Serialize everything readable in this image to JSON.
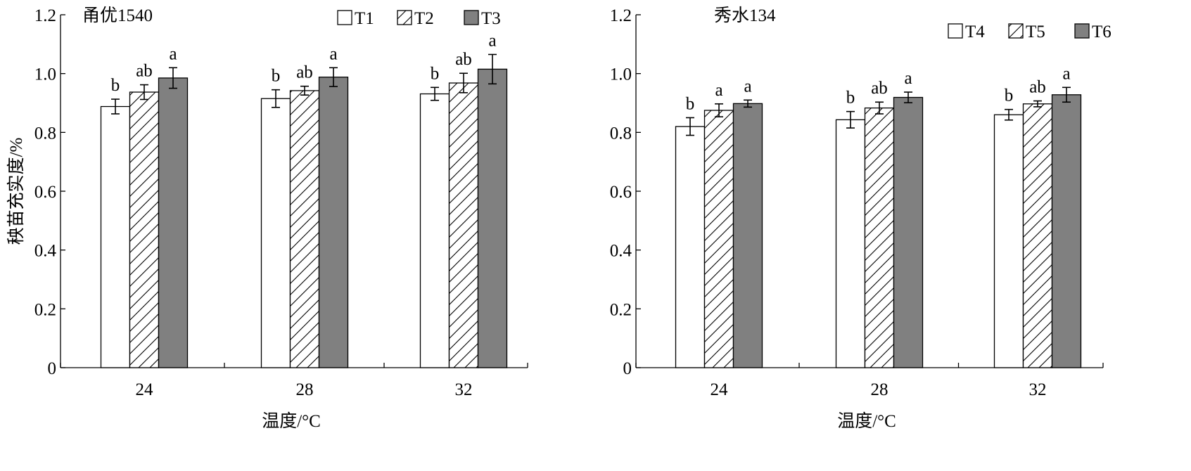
{
  "chart_data": [
    {
      "type": "bar",
      "title": "甬优1540",
      "xlabel": "温度/°C",
      "ylabel": "秧苗充实度/%",
      "categories": [
        "24",
        "28",
        "32"
      ],
      "ylim": [
        0,
        1.2
      ],
      "yticks": [
        "0",
        "0.2",
        "0.4",
        "0.6",
        "0.8",
        "1.0",
        "1.2"
      ],
      "legend_position": "top-right",
      "series": [
        {
          "name": "T1",
          "fill": "#ffffff",
          "pattern": "none",
          "values": [
            0.888,
            0.915,
            0.931
          ],
          "errors": [
            0.025,
            0.03,
            0.022
          ],
          "letters": [
            "b",
            "b",
            "b"
          ]
        },
        {
          "name": "T2",
          "fill": "#ffffff",
          "pattern": "hatch",
          "values": [
            0.937,
            0.942,
            0.968
          ],
          "errors": [
            0.025,
            0.015,
            0.033
          ],
          "letters": [
            "ab",
            "ab",
            "ab"
          ]
        },
        {
          "name": "T3",
          "fill": "#808080",
          "pattern": "none",
          "values": [
            0.985,
            0.988,
            1.015
          ],
          "errors": [
            0.035,
            0.032,
            0.05
          ],
          "letters": [
            "a",
            "a",
            "a"
          ]
        }
      ]
    },
    {
      "type": "bar",
      "title": "秀水134",
      "xlabel": "温度/°C",
      "ylabel": "",
      "categories": [
        "24",
        "28",
        "32"
      ],
      "ylim": [
        0,
        1.2
      ],
      "yticks": [
        "0",
        "0.2",
        "0.4",
        "0.6",
        "0.8",
        "1.0",
        "1.2"
      ],
      "legend_position": "top-right",
      "series": [
        {
          "name": "T4",
          "fill": "#ffffff",
          "pattern": "none",
          "values": [
            0.82,
            0.843,
            0.86
          ],
          "errors": [
            0.03,
            0.028,
            0.018
          ],
          "letters": [
            "b",
            "b",
            "b"
          ]
        },
        {
          "name": "T5",
          "fill": "#ffffff",
          "pattern": "hatch",
          "values": [
            0.875,
            0.883,
            0.897
          ],
          "errors": [
            0.022,
            0.02,
            0.01
          ],
          "letters": [
            "a",
            "ab",
            "ab"
          ]
        },
        {
          "name": "T6",
          "fill": "#808080",
          "pattern": "none",
          "values": [
            0.898,
            0.919,
            0.928
          ],
          "errors": [
            0.012,
            0.018,
            0.025
          ],
          "letters": [
            "a",
            "a",
            "a"
          ]
        }
      ]
    }
  ]
}
